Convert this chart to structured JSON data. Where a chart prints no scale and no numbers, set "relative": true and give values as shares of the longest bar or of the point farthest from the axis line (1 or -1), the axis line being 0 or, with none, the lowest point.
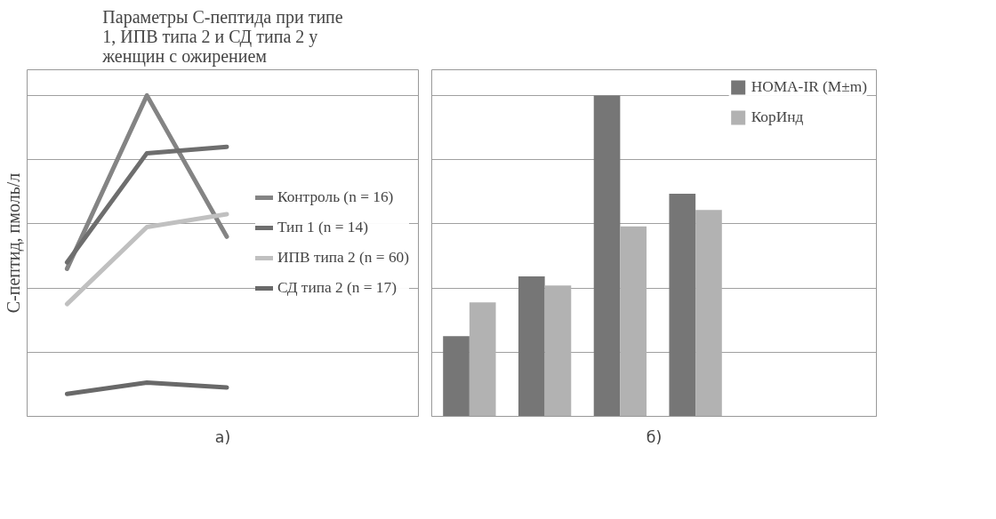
{
  "chart_data": [
    {
      "type": "line",
      "title": "Параметры С-пептида при типе 1, ИПВ типа 2 и СД типа 2 у женщин с ожирением",
      "ylabel": "С-пептид, пмоль/л",
      "categories": [
        null,
        null,
        null
      ],
      "relative": true,
      "grid": "y",
      "legend": "right",
      "annotations": [
        "а)"
      ],
      "series": [
        {
          "name": "Контроль (n = 16)",
          "color": "#848484",
          "values": [
            0.46,
            1.0,
            0.56
          ]
        },
        {
          "name": "Тип 1 (n = 14)",
          "color": "#6e6e6e",
          "values": [
            0.48,
            0.82,
            0.84
          ]
        },
        {
          "name": "ИПВ типа 2 (n = 60)",
          "color": "#c0c0c0",
          "values": [
            0.35,
            0.59,
            0.63
          ]
        },
        {
          "name": "СД типа 2 (n = 17)",
          "color": "#696969",
          "values": [
            0.07,
            0.105,
            0.09
          ]
        }
      ]
    },
    {
      "type": "bar",
      "categories": [
        null,
        null,
        null,
        null
      ],
      "relative": true,
      "grid": "y",
      "legend": "top right",
      "annotations": [
        "б)"
      ],
      "series": [
        {
          "name": "HOMA-IR (M±m)",
          "color": "#767676",
          "values": [
            0.25,
            0.436,
            1.0,
            0.694
          ]
        },
        {
          "name": "КорИнд",
          "color": "#b2b2b2",
          "values": [
            0.355,
            0.408,
            0.592,
            0.643
          ]
        }
      ]
    }
  ]
}
